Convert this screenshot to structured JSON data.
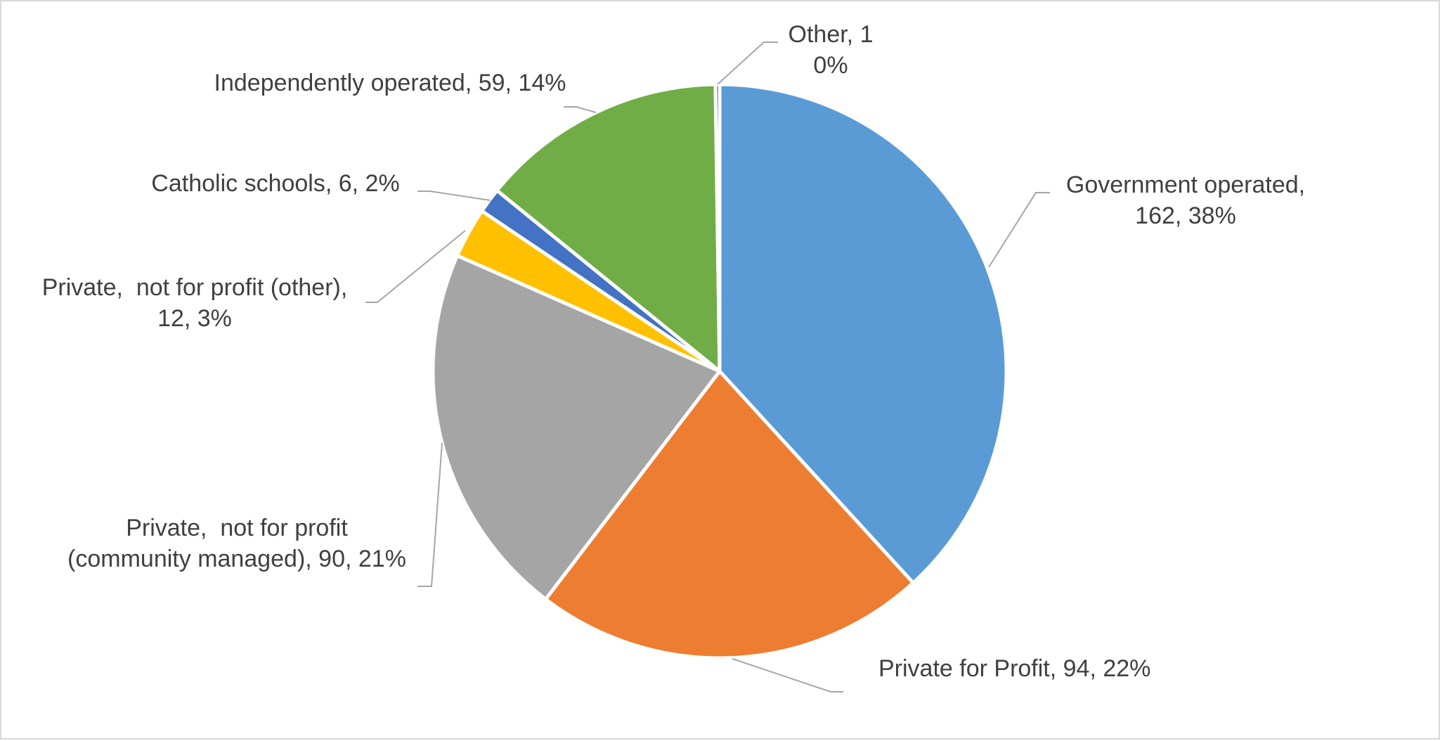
{
  "chart_data": {
    "type": "pie",
    "title": "",
    "slices": [
      {
        "name": "Government operated",
        "value": 162,
        "percent": "38%",
        "color": "#5B9BD5",
        "label_lines": [
          "Government operated,",
          "162, 38%"
        ]
      },
      {
        "name": "Private for Profit",
        "value": 94,
        "percent": "22%",
        "color": "#ED7D31",
        "label_lines": [
          "Private for Profit, 94, 22%"
        ]
      },
      {
        "name": "Private, not for profit (community managed)",
        "value": 90,
        "percent": "21%",
        "color": "#A5A5A5",
        "label_lines": [
          "Private,  not for profit",
          "(community managed), 90, 21%"
        ]
      },
      {
        "name": "Private, not for profit (other)",
        "value": 12,
        "percent": "3%",
        "color": "#FFC000",
        "label_lines": [
          "Private,  not for profit (other),",
          "12, 3%"
        ]
      },
      {
        "name": "Catholic schools",
        "value": 6,
        "percent": "2%",
        "color": "#4472C4",
        "label_lines": [
          "Catholic schools, 6, 2%"
        ]
      },
      {
        "name": "Independently operated",
        "value": 59,
        "percent": "14%",
        "color": "#70AD47",
        "label_lines": [
          "Independently operated, 59, 14%"
        ]
      },
      {
        "name": "Other",
        "value": 1,
        "percent": "0%",
        "color": "#264478",
        "label_lines": [
          "Other, 1",
          "0%"
        ]
      }
    ],
    "legend": "none"
  }
}
